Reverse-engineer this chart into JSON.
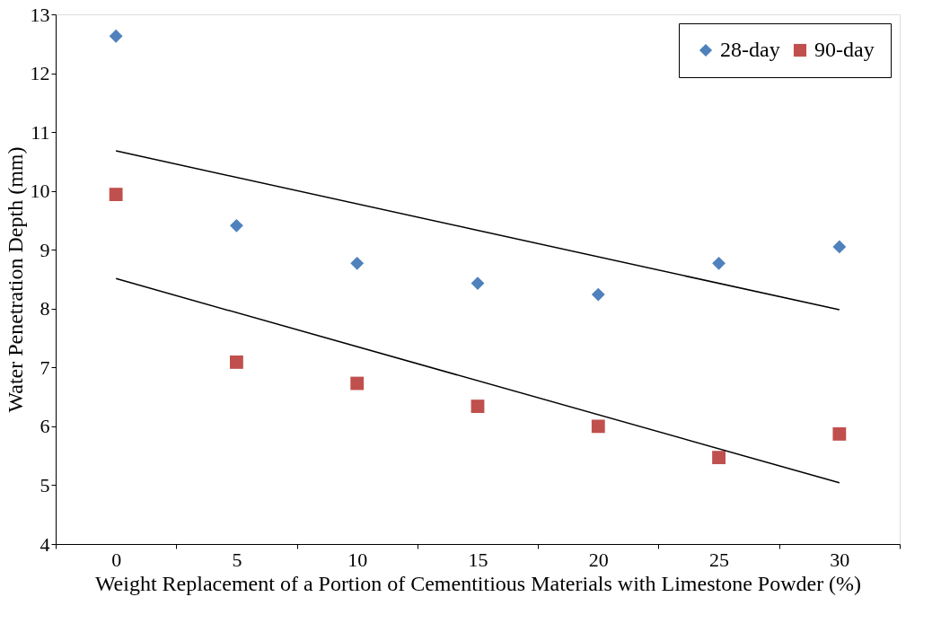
{
  "chart_data": {
    "type": "scatter",
    "xlabel": "Weight Replacement of a Portion of Cementitious Materials with Limestone Powder (%)",
    "ylabel": "Water Penetration Depth (mm)",
    "categories": [
      "0",
      "5",
      "10",
      "15",
      "20",
      "25",
      "30"
    ],
    "ylim": [
      4,
      13
    ],
    "yticks": [
      4,
      5,
      6,
      7,
      8,
      9,
      10,
      11,
      12,
      13
    ],
    "grid": false,
    "legend": "top right",
    "series": [
      {
        "name": "28-day",
        "marker": "diamond",
        "color": "#4f81bd",
        "values": [
          12.63,
          9.41,
          8.77,
          8.43,
          8.24,
          8.77,
          9.05
        ]
      },
      {
        "name": "90-day",
        "marker": "square",
        "color": "#c0504d",
        "values": [
          9.94,
          7.09,
          6.73,
          6.34,
          6.0,
          5.47,
          5.87
        ]
      },
      {
        "type": "line",
        "color": "#000000",
        "x": [
          "0",
          "30"
        ],
        "values": [
          10.68,
          7.98
        ]
      },
      {
        "type": "line",
        "color": "#000000",
        "x": [
          "0",
          "30"
        ],
        "values": [
          8.51,
          5.04
        ]
      }
    ]
  }
}
